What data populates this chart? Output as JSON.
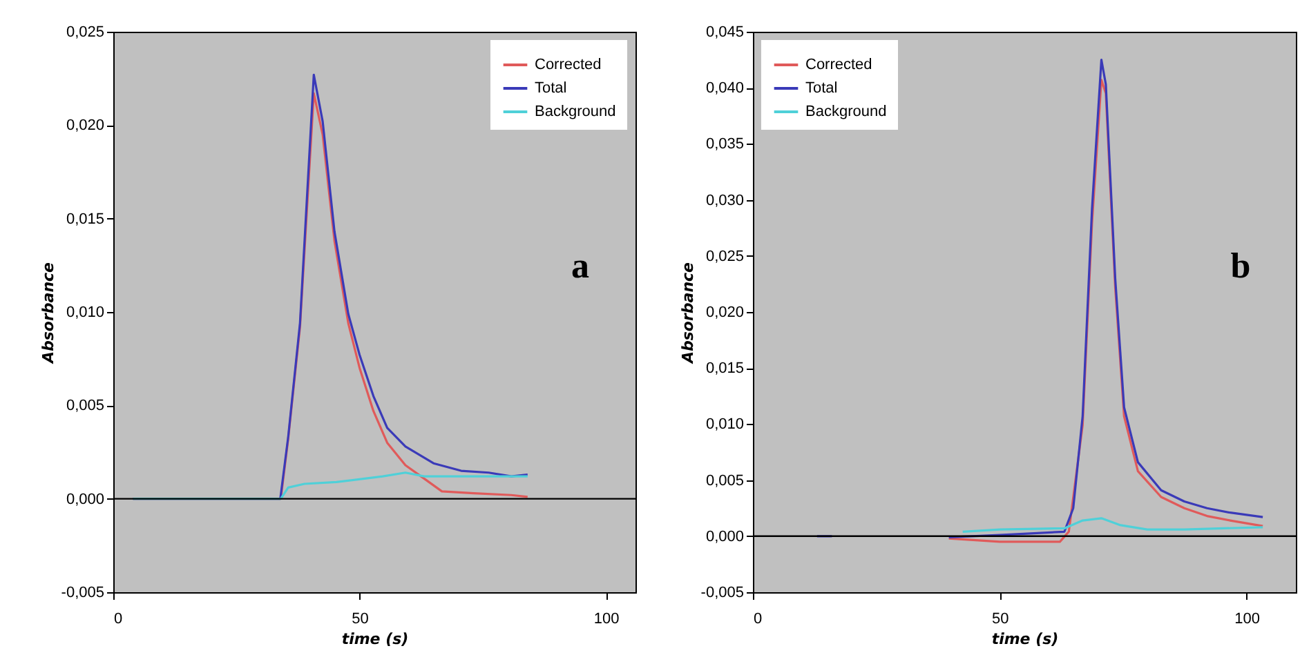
{
  "chart_data": [
    {
      "type": "line",
      "xlabel": "time (s)",
      "ylabel": "Absorbance",
      "annotations": [
        "a"
      ],
      "legend": "top right",
      "xlim": [
        0,
        106
      ],
      "xticks": [
        0,
        50,
        100
      ],
      "ylim": [
        -0.005,
        0.025
      ],
      "yticks": [
        {
          "value": -0.005,
          "label": "-0,005"
        },
        {
          "value": 0,
          "label": "0,000"
        },
        {
          "value": 0.005,
          "label": "0,005"
        },
        {
          "value": 0.01,
          "label": "0,010"
        },
        {
          "value": 0.015,
          "label": "0,015"
        },
        {
          "value": 0.02,
          "label": "0,020"
        },
        {
          "value": 0.025,
          "label": "0,025"
        }
      ],
      "ref_lines": [
        {
          "axis": "y",
          "value": 0,
          "color": "#000000"
        }
      ],
      "series": [
        {
          "name": "Corrected",
          "color": "#e05a5a",
          "x": [
            4,
            34,
            35.5,
            37.9,
            40.7,
            42.5,
            44.9,
            47.7,
            50,
            52.8,
            55.6,
            59.3,
            63,
            66.7,
            73.2,
            80.8,
            84.1
          ],
          "values": [
            0,
            0,
            0.0032,
            0.0092,
            0.0217,
            0.0195,
            0.0138,
            0.0094,
            0.007,
            0.0047,
            0.003,
            0.0018,
            0.0011,
            0.0004,
            0.0003,
            0.0002,
            0.0001
          ]
        },
        {
          "name": "Total",
          "color": "#3a3ab8",
          "x": [
            4,
            33.9,
            35.5,
            37.9,
            40.7,
            42.5,
            44.9,
            47.7,
            50,
            52.8,
            55.6,
            59.3,
            65,
            70.6,
            76.2,
            80.8,
            84.1
          ],
          "values": [
            0,
            0,
            0.0033,
            0.0094,
            0.0227,
            0.0202,
            0.0143,
            0.0099,
            0.0077,
            0.0055,
            0.0038,
            0.0028,
            0.0019,
            0.0015,
            0.0014,
            0.0012,
            0.0013
          ]
        },
        {
          "name": "Background",
          "color": "#4fd0d8",
          "x": [
            4,
            34,
            35.5,
            38.8,
            45.3,
            54.7,
            59.3,
            63.1,
            70,
            84.1
          ],
          "values": [
            0,
            0,
            0.0006,
            0.0008,
            0.0009,
            0.0012,
            0.0014,
            0.0012,
            0.0012,
            0.0012
          ]
        }
      ]
    },
    {
      "type": "line",
      "xlabel": "time (s)",
      "ylabel": "Absorbance",
      "annotations": [
        "b"
      ],
      "legend": "top left",
      "xlim": [
        0,
        110
      ],
      "xticks": [
        0,
        50,
        100
      ],
      "ylim": [
        -0.005,
        0.045
      ],
      "yticks": [
        {
          "value": -0.005,
          "label": "-0,005"
        },
        {
          "value": 0,
          "label": "0,000"
        },
        {
          "value": 0.005,
          "label": "0,005"
        },
        {
          "value": 0.01,
          "label": "0,010"
        },
        {
          "value": 0.015,
          "label": "0,015"
        },
        {
          "value": 0.02,
          "label": "0,020"
        },
        {
          "value": 0.025,
          "label": "0,025"
        },
        {
          "value": 0.03,
          "label": "0,030"
        },
        {
          "value": 0.035,
          "label": "0,035"
        },
        {
          "value": 0.04,
          "label": "0,040"
        },
        {
          "value": 0.045,
          "label": "0,045"
        }
      ],
      "ref_lines": [
        {
          "axis": "y",
          "value": 0,
          "color": "#000000"
        }
      ],
      "series": [
        {
          "name": "Corrected",
          "color": "#e05a5a",
          "x": [
            39.7,
            50,
            62.2,
            64,
            66.8,
            68.7,
            70.6,
            71.5,
            73.4,
            75.2,
            78,
            82.7,
            87.4,
            92,
            96.7,
            103.3
          ],
          "values": [
            -0.0002,
            -0.0005,
            -0.0005,
            0.0004,
            0.0099,
            0.0279,
            0.0407,
            0.0395,
            0.0222,
            0.0107,
            0.0058,
            0.0035,
            0.0025,
            0.0018,
            0.0014,
            0.0009
          ]
        },
        {
          "name": "Total",
          "color": "#3a3ab8",
          "x": [
            13,
            16,
            30,
            39.7,
            50,
            63.1,
            64.9,
            66.8,
            68.7,
            70.6,
            71.5,
            73.4,
            75.2,
            78,
            82.7,
            87.4,
            92,
            96.7,
            103.3
          ],
          "values": [
            0,
            0,
            null,
            -0.0001,
            0.0001,
            0.0004,
            0.0025,
            0.0107,
            0.0292,
            0.0425,
            0.0403,
            0.023,
            0.0115,
            0.0066,
            0.0041,
            0.0031,
            0.0025,
            0.0021,
            0.0017
          ]
        },
        {
          "name": "Background",
          "color": "#4fd0d8",
          "x": [
            42.5,
            50,
            63.1,
            66.8,
            70.6,
            74.3,
            79.9,
            87.4,
            103.3
          ],
          "values": [
            0.0004,
            0.0006,
            0.0007,
            0.0014,
            0.0016,
            0.001,
            0.0006,
            0.0006,
            0.0008
          ]
        }
      ]
    }
  ]
}
